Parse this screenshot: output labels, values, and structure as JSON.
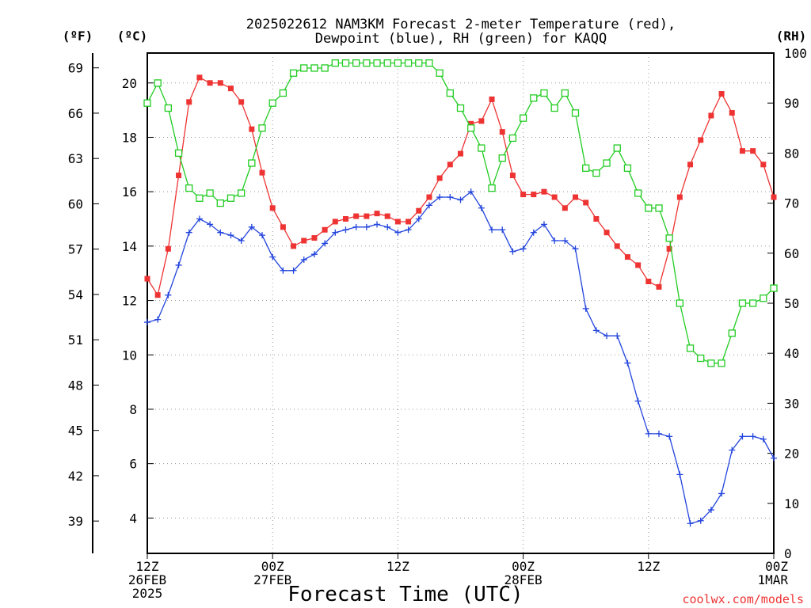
{
  "chart_data": {
    "type": "line",
    "title_line1": "2025022612 NAM3KM Forecast 2-meter Temperature (red),",
    "title_line2": "Dewpoint (blue), RH (green) for KAQQ",
    "xlabel": "Forecast Time (UTC)",
    "credit": "coolwx.com/models",
    "unit_f": "(ºF)",
    "unit_c": "(ºC)",
    "unit_rh": "(RH)",
    "hours": [
      0,
      1,
      2,
      3,
      4,
      5,
      6,
      7,
      8,
      9,
      10,
      11,
      12,
      13,
      14,
      15,
      16,
      17,
      18,
      19,
      20,
      21,
      22,
      23,
      24,
      25,
      26,
      27,
      28,
      29,
      30,
      31,
      32,
      33,
      34,
      35,
      36,
      37,
      38,
      39,
      40,
      41,
      42,
      43,
      44,
      45,
      46,
      47,
      48,
      49,
      50,
      51,
      52,
      53,
      54,
      55,
      56,
      57,
      58,
      59,
      60
    ],
    "x_ticks": [
      {
        "hour": 0,
        "lines": [
          "12Z",
          "26FEB",
          "2025"
        ]
      },
      {
        "hour": 12,
        "lines": [
          "00Z",
          "27FEB"
        ]
      },
      {
        "hour": 24,
        "lines": [
          "12Z"
        ]
      },
      {
        "hour": 36,
        "lines": [
          "00Z",
          "28FEB"
        ]
      },
      {
        "hour": 48,
        "lines": [
          "12Z"
        ]
      },
      {
        "hour": 60,
        "lines": [
          "00Z",
          "1MAR"
        ]
      }
    ],
    "xlim": [
      0,
      60
    ],
    "y_celsius": {
      "ticks": [
        4,
        6,
        8,
        10,
        12,
        14,
        16,
        18,
        20
      ],
      "lim": [
        2.7,
        21.1
      ]
    },
    "y_fahrenheit": {
      "ticks": [
        39,
        42,
        45,
        48,
        51,
        54,
        57,
        60,
        63,
        66,
        69
      ]
    },
    "y_rh": {
      "ticks": [
        0,
        10,
        20,
        30,
        40,
        50,
        60,
        70,
        80,
        90,
        100
      ],
      "lim": [
        0,
        100
      ]
    },
    "grid": true,
    "series": [
      {
        "name": "Temperature",
        "color": "#ee3333",
        "marker": "filled-square",
        "axis": "celsius",
        "values": [
          12.8,
          12.2,
          13.9,
          16.6,
          19.3,
          20.2,
          20.0,
          20.0,
          19.8,
          19.3,
          18.3,
          16.7,
          15.4,
          14.7,
          14.0,
          14.2,
          14.3,
          14.6,
          14.9,
          15.0,
          15.1,
          15.1,
          15.2,
          15.1,
          14.9,
          14.9,
          15.3,
          15.8,
          16.5,
          17.0,
          17.4,
          18.5,
          18.6,
          19.4,
          18.2,
          16.6,
          15.9,
          15.9,
          16.0,
          15.8,
          15.4,
          15.8,
          15.6,
          15.0,
          14.5,
          14.0,
          13.6,
          13.3,
          12.7,
          12.5,
          13.9,
          15.8,
          17.0,
          17.9,
          18.8,
          19.6,
          18.9,
          17.5,
          17.5,
          17.0,
          15.8
        ]
      },
      {
        "name": "Dewpoint",
        "color": "#2244dd",
        "marker": "plus",
        "axis": "celsius",
        "values": [
          11.2,
          11.3,
          12.2,
          13.3,
          14.5,
          15.0,
          14.8,
          14.5,
          14.4,
          14.2,
          14.7,
          14.4,
          13.6,
          13.1,
          13.1,
          13.5,
          13.7,
          14.1,
          14.5,
          14.6,
          14.7,
          14.7,
          14.8,
          14.7,
          14.5,
          14.6,
          15.0,
          15.5,
          15.8,
          15.8,
          15.7,
          16.0,
          15.4,
          14.6,
          14.6,
          13.8,
          13.9,
          14.5,
          14.8,
          14.2,
          14.2,
          13.9,
          11.7,
          10.9,
          10.7,
          10.7,
          9.7,
          8.3,
          7.1,
          7.1,
          7.0,
          5.6,
          3.8,
          3.9,
          4.3,
          4.9,
          6.5,
          7.0,
          7.0,
          6.9,
          6.2
        ]
      },
      {
        "name": "RH",
        "color": "#22cc22",
        "marker": "open-square",
        "axis": "rh",
        "values": [
          90,
          94,
          89,
          80,
          73,
          71,
          72,
          70,
          71,
          72,
          78,
          85,
          90,
          92,
          96,
          97,
          97,
          97,
          98,
          98,
          98,
          98,
          98,
          98,
          98,
          98,
          98,
          98,
          96,
          92,
          89,
          85,
          81,
          73,
          79,
          83,
          87,
          91,
          92,
          89,
          92,
          88,
          77,
          76,
          78,
          81,
          77,
          72,
          69,
          69,
          63,
          50,
          41,
          39,
          38,
          38,
          44,
          50,
          50,
          51,
          53
        ]
      }
    ]
  }
}
